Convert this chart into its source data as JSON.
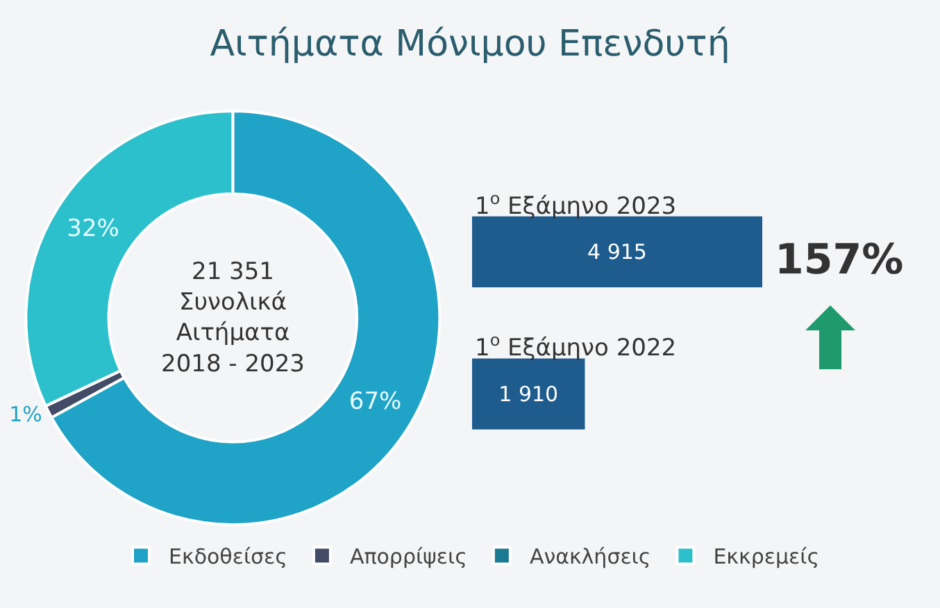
{
  "chart_data": [
    {
      "type": "donut",
      "title": "Αιτήματα Μόνιμου Επενδυτή",
      "categories": [
        "Εκδοθείσες",
        "Απορρίψεις",
        "Ανακλήσεις",
        "Εκκρεμείς"
      ],
      "values": [
        67,
        1,
        0,
        32
      ],
      "value_labels": [
        "67%",
        "1%",
        null,
        "32%"
      ],
      "colors": [
        "#1fa3c6",
        "#434c66",
        "#1a7a92",
        "#2cc0cc"
      ],
      "annotations": [
        "21 351\nΣυνολικά\nΑιτήματα\n2018 - 2023"
      ],
      "legend": "bottom"
    },
    {
      "type": "bar",
      "orientation": "horizontal",
      "categories": [
        "1$^{ο}$ Εξάμηνο 2023",
        "1$^{ο}$ Εξάμηνο 2022"
      ],
      "values": [
        4915,
        1910
      ],
      "value_labels": [
        "4 915",
        "1 910"
      ],
      "color": "#1f5c8e",
      "annotations": [
        "157%"
      ]
    }
  ]
}
